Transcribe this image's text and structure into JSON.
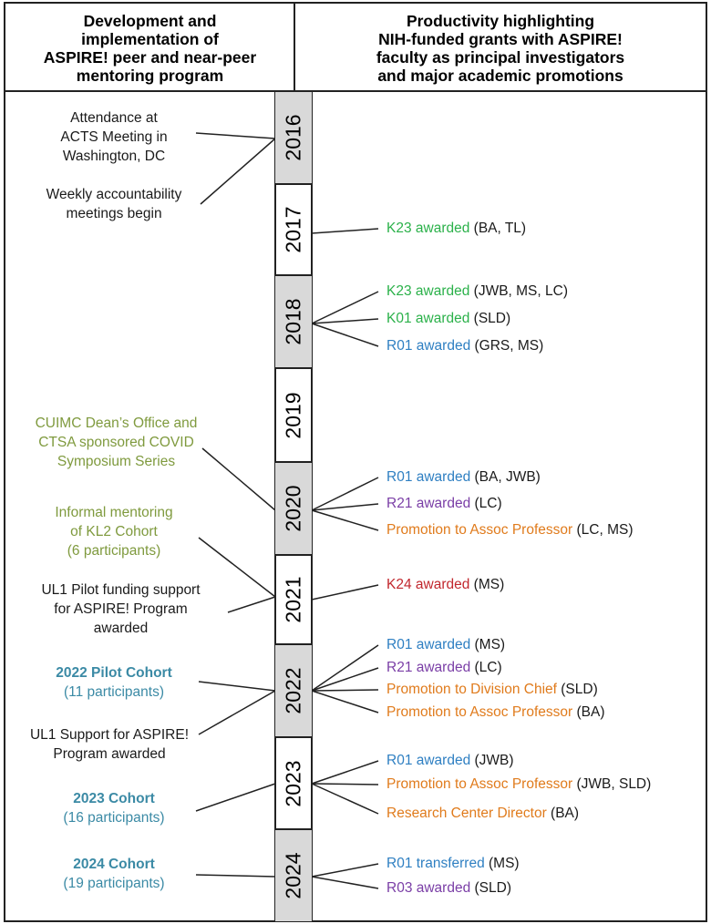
{
  "header": {
    "left": [
      "Development and",
      "implementation of",
      "ASPIRE! peer and near-peer",
      "mentoring program"
    ],
    "right": [
      "Productivity highlighting",
      "NIH-funded grants with ASPIRE!",
      "faculty as principal investigators",
      "and major academic promotions"
    ]
  },
  "years": [
    "2016",
    "2017",
    "2018",
    "2019",
    "2020",
    "2021",
    "2022",
    "2023",
    "2024"
  ],
  "left_events": {
    "acts": [
      "Attendance at",
      "ACTS Meeting in",
      "Washington, DC"
    ],
    "weekly": [
      "Weekly accountability",
      "meetings begin"
    ],
    "covid": [
      "CUIMC Dean’s Office and",
      "CTSA sponsored COVID",
      "Symposium Series"
    ],
    "kl2": [
      "Informal mentoring",
      "of KL2 Cohort",
      "(6 participants)"
    ],
    "ul1_pilot": [
      "UL1 Pilot funding support",
      "for ASPIRE! Program",
      "awarded"
    ],
    "pilot_cohort": [
      "2022 Pilot Cohort",
      "(11 participants)"
    ],
    "ul1_support": [
      "UL1 Support for ASPIRE!",
      "Program awarded"
    ],
    "cohort_2023": [
      "2023 Cohort",
      "(16 participants)"
    ],
    "cohort_2024": [
      "2024 Cohort",
      "(19 participants)"
    ]
  },
  "right_events": {
    "y2017": [
      {
        "label": "K23 awarded",
        "who": "(BA, TL)"
      }
    ],
    "y2018": [
      {
        "label": "K23 awarded",
        "who": "(JWB, MS, LC)"
      },
      {
        "label": "K01 awarded",
        "who": "(SLD)"
      },
      {
        "label": "R01 awarded",
        "who": "(GRS, MS)"
      }
    ],
    "y2020": [
      {
        "label": "R01 awarded",
        "who": "(BA, JWB)"
      },
      {
        "label": "R21 awarded",
        "who": "(LC)"
      },
      {
        "label": "Promotion to Assoc Professor",
        "who": "(LC, MS)"
      }
    ],
    "y2021": [
      {
        "label": "K24 awarded",
        "who": "(MS)"
      }
    ],
    "y2022": [
      {
        "label": "R01 awarded",
        "who": "(MS)"
      },
      {
        "label": "R21 awarded",
        "who": "(LC)"
      },
      {
        "label": "Promotion to Division Chief",
        "who": "(SLD)"
      },
      {
        "label": "Promotion to Assoc Professor",
        "who": "(BA)"
      }
    ],
    "y2023": [
      {
        "label": "R01 awarded",
        "who": "(JWB)"
      },
      {
        "label": "Promotion to Assoc Professor",
        "who": "(JWB, SLD)"
      },
      {
        "label": "Research Center Director",
        "who": "(BA)"
      }
    ],
    "y2024": [
      {
        "label": "R01 transferred",
        "who": "(MS)"
      },
      {
        "label": "R03 awarded",
        "who": "(SLD)"
      }
    ]
  },
  "colors": {
    "olive": "#7f9a3e",
    "teal": "#3b8aa5",
    "green": "#2bb14a",
    "blue": "#2e7fc2",
    "purple": "#7a3ea6",
    "orange": "#e07b1c",
    "red": "#c1272d",
    "year_fill": "#d9d9d9"
  }
}
